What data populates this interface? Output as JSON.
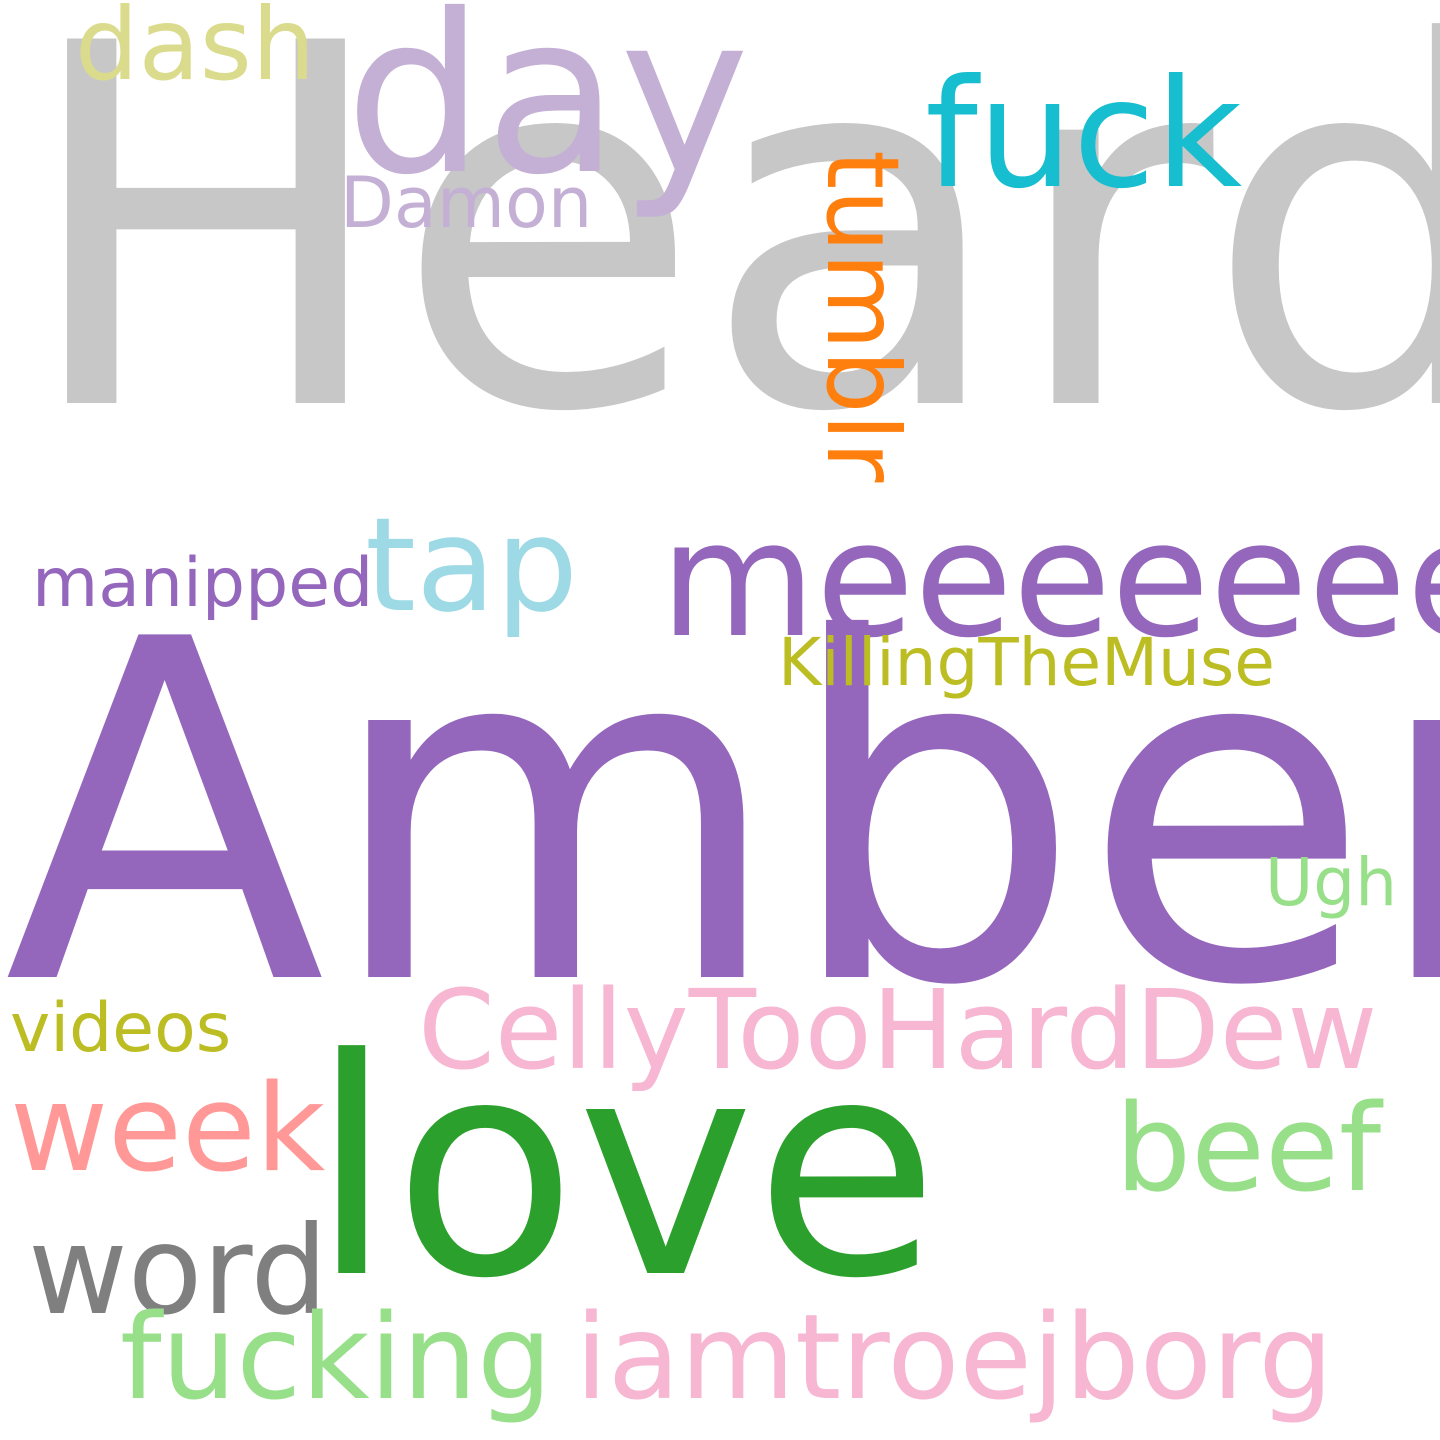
{
  "word_cloud": {
    "words": [
      {
        "key": "heard",
        "text": "Heard",
        "color": "#c7c7c7"
      },
      {
        "key": "amber",
        "text": "Amber",
        "color": "#9467bd"
      },
      {
        "key": "love",
        "text": "love",
        "color": "#2ca02c"
      },
      {
        "key": "day",
        "text": "day",
        "color": "#c5b0d5"
      },
      {
        "key": "fuck",
        "text": "fuck",
        "color": "#17becf"
      },
      {
        "key": "dash",
        "text": "dash",
        "color": "#dbdb8d"
      },
      {
        "key": "damon",
        "text": "Damon",
        "color": "#c5b0d5"
      },
      {
        "key": "tumblr",
        "text": "tumblr",
        "color": "#ff7f0e"
      },
      {
        "key": "tap",
        "text": "tap",
        "color": "#9edae5"
      },
      {
        "key": "meeeeeee",
        "text": "meeeeeee",
        "color": "#9467bd"
      },
      {
        "key": "manipped",
        "text": "manipped",
        "color": "#9467bd"
      },
      {
        "key": "killingthemuse",
        "text": "KillingTheMuse",
        "color": "#bcbd22"
      },
      {
        "key": "ugh",
        "text": "Ugh",
        "color": "#98df8a"
      },
      {
        "key": "videos",
        "text": "videos",
        "color": "#bcbd22"
      },
      {
        "key": "cellytoohard",
        "text": "CellyTooHardDew",
        "color": "#f7b6d2"
      },
      {
        "key": "week",
        "text": "week",
        "color": "#ff9896"
      },
      {
        "key": "beef",
        "text": "beef",
        "color": "#98df8a"
      },
      {
        "key": "word",
        "text": "word",
        "color": "#7f7f7f"
      },
      {
        "key": "fucking",
        "text": "fucking",
        "color": "#98df8a"
      },
      {
        "key": "iamtroejborg",
        "text": "iamtroejborg",
        "color": "#f7b6d2"
      }
    ]
  }
}
